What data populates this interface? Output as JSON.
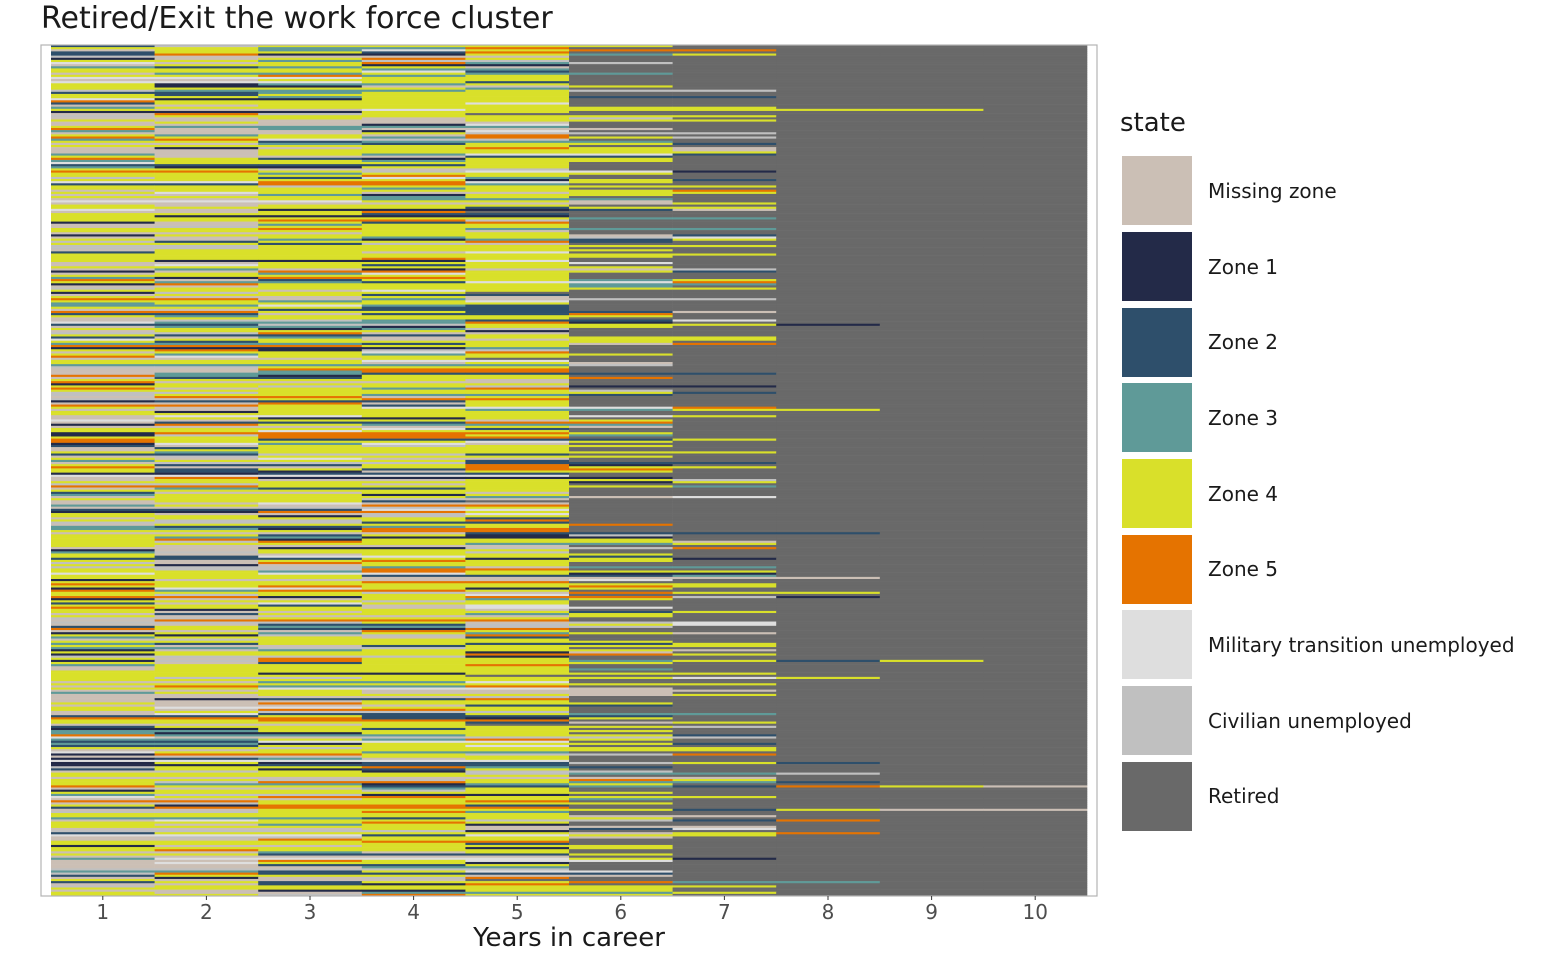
{
  "chart_data": {
    "type": "heatmap",
    "subtype": "sequence index plot",
    "title": "Retired/Exit the work force cluster",
    "xlabel": "Years in career",
    "ylabel": "",
    "x_ticks": [
      1,
      2,
      3,
      4,
      5,
      6,
      7,
      8,
      9,
      10
    ],
    "xlim": [
      0.5,
      10.5
    ],
    "grid": false,
    "legend_title": "state",
    "legend_position": "right",
    "states": [
      {
        "name": "Missing zone",
        "color": "#CBBFB5"
      },
      {
        "name": "Zone 1",
        "color": "#232A48"
      },
      {
        "name": "Zone 2",
        "color": "#2E4F6B"
      },
      {
        "name": "Zone 3",
        "color": "#5F9A98"
      },
      {
        "name": "Zone 4",
        "color": "#D9E02A"
      },
      {
        "name": "Zone 5",
        "color": "#E57300"
      },
      {
        "name": "Military transition unemployed",
        "color": "#DEDEDE"
      },
      {
        "name": "Civilian unemployed",
        "color": "#C0C0C0"
      },
      {
        "name": "Retired",
        "color": "#696969"
      }
    ],
    "state_share_by_year": [
      {
        "year": 1,
        "Retired": 0.0
      },
      {
        "year": 2,
        "Retired": 0.0
      },
      {
        "year": 3,
        "Retired": 0.0
      },
      {
        "year": 4,
        "Retired": 0.0
      },
      {
        "year": 5,
        "Retired": 0.02
      },
      {
        "year": 6,
        "Retired": 0.5
      },
      {
        "year": 7,
        "Retired": 0.72
      },
      {
        "year": 8,
        "Retired": 0.96
      },
      {
        "year": 9,
        "Retired": 0.99
      },
      {
        "year": 10,
        "Retired": 0.995
      }
    ]
  }
}
